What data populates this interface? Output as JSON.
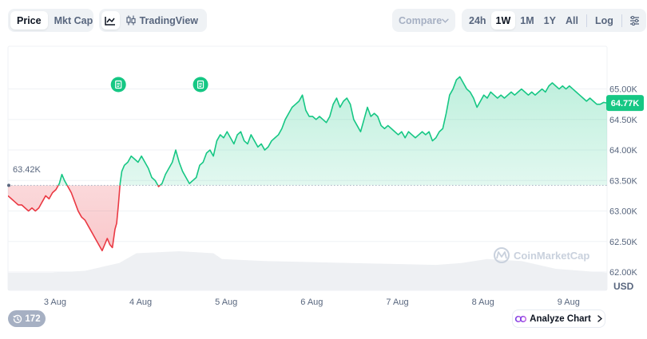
{
  "toolbar": {
    "chart_type": {
      "price": "Price",
      "mkt_cap": "Mkt Cap",
      "active": "price"
    },
    "tools": {
      "line_icon": "line-chart-icon",
      "tradingview_icon": "candlestick-icon",
      "tradingview": "TradingView"
    },
    "compare": {
      "label": "Compare",
      "icon": "chevron-down-icon"
    },
    "ranges": [
      "24h",
      "1W",
      "1M",
      "1Y",
      "All"
    ],
    "active_range": "1W",
    "log": "Log",
    "settings_icon": "settings-sliders-icon"
  },
  "footer": {
    "views_icon": "history-icon",
    "views_count": "172",
    "analyze_icon": "analyze-icon",
    "analyze_label": "Analyze Chart",
    "analyze_arrow": "chevron-right-icon"
  },
  "colors": {
    "up": "#16c784",
    "down": "#ea3943",
    "current_badge": "#16c784",
    "grid": "#eff2f5",
    "text_muted": "#58667e",
    "volume": "#eef0f3",
    "watermark": "#c9d1dd"
  },
  "chart_data": {
    "type": "area",
    "currency_label": "USD",
    "watermark": "CoinMarketCap",
    "open_label": "63.42K",
    "open_value": 63420,
    "current_label": "64.77K",
    "current_value": 64770,
    "yticks": [
      {
        "label": "65.00K",
        "value": 65000
      },
      {
        "label": "64.50K",
        "value": 64500
      },
      {
        "label": "64.00K",
        "value": 64000
      },
      {
        "label": "63.50K",
        "value": 63500
      },
      {
        "label": "63.00K",
        "value": 63000
      },
      {
        "label": "62.50K",
        "value": 62500
      },
      {
        "label": "62.00K",
        "value": 62000
      }
    ],
    "ylim": [
      61700,
      65700
    ],
    "xlim": [
      0,
      7.0
    ],
    "xticks": [
      {
        "label": "3 Aug",
        "value": 0.55
      },
      {
        "label": "4 Aug",
        "value": 1.55
      },
      {
        "label": "5 Aug",
        "value": 2.55
      },
      {
        "label": "6 Aug",
        "value": 3.55
      },
      {
        "label": "7 Aug",
        "value": 4.55
      },
      {
        "label": "8 Aug",
        "value": 5.55
      },
      {
        "label": "9 Aug",
        "value": 6.55
      }
    ],
    "event_markers": [
      {
        "x": 1.29,
        "icon": "news-document-icon"
      },
      {
        "x": 2.25,
        "icon": "news-document-icon"
      }
    ],
    "points": [
      [
        0.0,
        63.25
      ],
      [
        0.04,
        63.2
      ],
      [
        0.08,
        63.15
      ],
      [
        0.12,
        63.1
      ],
      [
        0.16,
        63.1
      ],
      [
        0.2,
        63.05
      ],
      [
        0.24,
        63.0
      ],
      [
        0.28,
        63.05
      ],
      [
        0.32,
        63.0
      ],
      [
        0.36,
        63.05
      ],
      [
        0.4,
        63.15
      ],
      [
        0.44,
        63.25
      ],
      [
        0.48,
        63.2
      ],
      [
        0.52,
        63.3
      ],
      [
        0.56,
        63.35
      ],
      [
        0.6,
        63.45
      ],
      [
        0.63,
        63.6
      ],
      [
        0.66,
        63.5
      ],
      [
        0.7,
        63.4
      ],
      [
        0.74,
        63.3
      ],
      [
        0.78,
        63.15
      ],
      [
        0.82,
        63.0
      ],
      [
        0.86,
        62.9
      ],
      [
        0.9,
        62.85
      ],
      [
        0.94,
        62.75
      ],
      [
        0.98,
        62.65
      ],
      [
        1.02,
        62.55
      ],
      [
        1.06,
        62.45
      ],
      [
        1.1,
        62.35
      ],
      [
        1.13,
        62.45
      ],
      [
        1.16,
        62.55
      ],
      [
        1.19,
        62.45
      ],
      [
        1.22,
        62.4
      ],
      [
        1.25,
        62.7
      ],
      [
        1.27,
        62.8
      ],
      [
        1.29,
        63.1
      ],
      [
        1.31,
        63.45
      ],
      [
        1.33,
        63.65
      ],
      [
        1.36,
        63.75
      ],
      [
        1.4,
        63.8
      ],
      [
        1.44,
        63.9
      ],
      [
        1.48,
        63.85
      ],
      [
        1.52,
        63.8
      ],
      [
        1.56,
        63.9
      ],
      [
        1.6,
        63.8
      ],
      [
        1.64,
        63.7
      ],
      [
        1.68,
        63.55
      ],
      [
        1.72,
        63.5
      ],
      [
        1.76,
        63.4
      ],
      [
        1.8,
        63.45
      ],
      [
        1.84,
        63.6
      ],
      [
        1.88,
        63.7
      ],
      [
        1.92,
        63.8
      ],
      [
        1.96,
        64.0
      ],
      [
        2.0,
        63.8
      ],
      [
        2.04,
        63.65
      ],
      [
        2.08,
        63.55
      ],
      [
        2.12,
        63.45
      ],
      [
        2.16,
        63.5
      ],
      [
        2.2,
        63.55
      ],
      [
        2.24,
        63.75
      ],
      [
        2.28,
        63.8
      ],
      [
        2.32,
        63.95
      ],
      [
        2.36,
        64.0
      ],
      [
        2.4,
        63.9
      ],
      [
        2.44,
        64.15
      ],
      [
        2.48,
        64.25
      ],
      [
        2.52,
        64.2
      ],
      [
        2.56,
        64.3
      ],
      [
        2.6,
        64.2
      ],
      [
        2.64,
        64.1
      ],
      [
        2.68,
        64.25
      ],
      [
        2.72,
        64.3
      ],
      [
        2.76,
        64.15
      ],
      [
        2.8,
        64.1
      ],
      [
        2.84,
        64.25
      ],
      [
        2.88,
        64.15
      ],
      [
        2.92,
        64.05
      ],
      [
        2.96,
        64.1
      ],
      [
        3.0,
        64.0
      ],
      [
        3.04,
        64.05
      ],
      [
        3.08,
        64.15
      ],
      [
        3.12,
        64.2
      ],
      [
        3.16,
        64.25
      ],
      [
        3.2,
        64.35
      ],
      [
        3.24,
        64.5
      ],
      [
        3.28,
        64.6
      ],
      [
        3.32,
        64.7
      ],
      [
        3.36,
        64.75
      ],
      [
        3.4,
        64.8
      ],
      [
        3.44,
        64.9
      ],
      [
        3.48,
        64.65
      ],
      [
        3.52,
        64.55
      ],
      [
        3.56,
        64.55
      ],
      [
        3.6,
        64.5
      ],
      [
        3.64,
        64.55
      ],
      [
        3.68,
        64.5
      ],
      [
        3.72,
        64.45
      ],
      [
        3.76,
        64.55
      ],
      [
        3.8,
        64.75
      ],
      [
        3.84,
        64.85
      ],
      [
        3.88,
        64.7
      ],
      [
        3.92,
        64.8
      ],
      [
        3.96,
        64.85
      ],
      [
        4.0,
        64.75
      ],
      [
        4.04,
        64.5
      ],
      [
        4.08,
        64.4
      ],
      [
        4.12,
        64.3
      ],
      [
        4.16,
        64.5
      ],
      [
        4.2,
        64.7
      ],
      [
        4.24,
        64.55
      ],
      [
        4.28,
        64.6
      ],
      [
        4.32,
        64.55
      ],
      [
        4.36,
        64.4
      ],
      [
        4.4,
        64.35
      ],
      [
        4.44,
        64.4
      ],
      [
        4.48,
        64.35
      ],
      [
        4.52,
        64.3
      ],
      [
        4.56,
        64.25
      ],
      [
        4.6,
        64.3
      ],
      [
        4.64,
        64.2
      ],
      [
        4.68,
        64.3
      ],
      [
        4.72,
        64.25
      ],
      [
        4.76,
        64.2
      ],
      [
        4.8,
        64.25
      ],
      [
        4.84,
        64.3
      ],
      [
        4.88,
        64.25
      ],
      [
        4.92,
        64.3
      ],
      [
        4.96,
        64.15
      ],
      [
        5.0,
        64.2
      ],
      [
        5.04,
        64.3
      ],
      [
        5.08,
        64.35
      ],
      [
        5.12,
        64.6
      ],
      [
        5.16,
        64.9
      ],
      [
        5.2,
        65.0
      ],
      [
        5.24,
        65.15
      ],
      [
        5.28,
        65.2
      ],
      [
        5.32,
        65.1
      ],
      [
        5.36,
        65.0
      ],
      [
        5.4,
        64.95
      ],
      [
        5.44,
        64.85
      ],
      [
        5.48,
        64.7
      ],
      [
        5.52,
        64.8
      ],
      [
        5.56,
        64.9
      ],
      [
        5.6,
        64.85
      ],
      [
        5.64,
        64.95
      ],
      [
        5.68,
        64.9
      ],
      [
        5.72,
        64.85
      ],
      [
        5.76,
        64.9
      ],
      [
        5.8,
        64.85
      ],
      [
        5.84,
        64.9
      ],
      [
        5.88,
        64.95
      ],
      [
        5.92,
        64.9
      ],
      [
        5.96,
        64.95
      ],
      [
        6.0,
        65.0
      ],
      [
        6.04,
        64.95
      ],
      [
        6.08,
        64.9
      ],
      [
        6.12,
        64.95
      ],
      [
        6.16,
        64.9
      ],
      [
        6.2,
        64.95
      ],
      [
        6.24,
        65.0
      ],
      [
        6.28,
        64.95
      ],
      [
        6.32,
        65.05
      ],
      [
        6.36,
        65.1
      ],
      [
        6.4,
        65.05
      ],
      [
        6.44,
        65.0
      ],
      [
        6.48,
        65.05
      ],
      [
        6.52,
        65.0
      ],
      [
        6.56,
        65.05
      ],
      [
        6.6,
        65.0
      ],
      [
        6.64,
        64.95
      ],
      [
        6.68,
        64.9
      ],
      [
        6.72,
        64.85
      ],
      [
        6.76,
        64.8
      ],
      [
        6.8,
        64.85
      ],
      [
        6.84,
        64.8
      ],
      [
        6.88,
        64.75
      ],
      [
        6.92,
        64.75
      ],
      [
        6.96,
        64.78
      ],
      [
        7.0,
        64.77
      ]
    ],
    "volume_shape": [
      [
        0.0,
        0.45
      ],
      [
        0.5,
        0.45
      ],
      [
        0.9,
        0.5
      ],
      [
        1.3,
        0.7
      ],
      [
        1.5,
        0.95
      ],
      [
        2.0,
        1.0
      ],
      [
        2.4,
        0.95
      ],
      [
        2.5,
        0.8
      ],
      [
        3.0,
        0.75
      ],
      [
        4.0,
        0.7
      ],
      [
        5.0,
        0.65
      ],
      [
        5.3,
        0.7
      ],
      [
        5.6,
        0.8
      ],
      [
        6.0,
        0.75
      ],
      [
        6.4,
        0.55
      ],
      [
        7.0,
        0.45
      ]
    ]
  }
}
